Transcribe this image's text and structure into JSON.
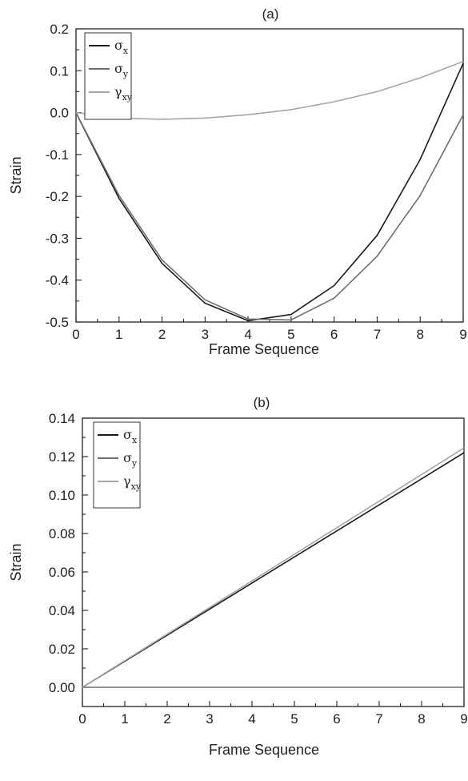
{
  "chart_data": [
    {
      "type": "line",
      "title": "(a)",
      "xlabel": "Frame Sequence",
      "ylabel": "Strain",
      "xlim": [
        0,
        9
      ],
      "ylim": [
        -0.5,
        0.2
      ],
      "xticks": [
        "0",
        "1",
        "2",
        "3",
        "4",
        "5",
        "6",
        "7",
        "8",
        "9"
      ],
      "yticks": [
        "-0.5",
        "-0.4",
        "-0.3",
        "-0.2",
        "-0.1",
        "0.0",
        "0.1",
        "0.2"
      ],
      "legend_position": "top-left",
      "series": [
        {
          "name": "σx",
          "base": "σ",
          "sub": "x",
          "color": "#1a1a1a",
          "x": [
            0,
            1,
            2,
            3,
            4,
            5,
            6,
            7,
            8,
            9
          ],
          "y": [
            0.0,
            -0.205,
            -0.36,
            -0.455,
            -0.497,
            -0.482,
            -0.413,
            -0.293,
            -0.112,
            0.118
          ]
        },
        {
          "name": "σy",
          "base": "σ",
          "sub": "y",
          "color": "#6e6e6e",
          "x": [
            0,
            1,
            2,
            3,
            4,
            5,
            6,
            7,
            8,
            9
          ],
          "y": [
            0.0,
            -0.198,
            -0.352,
            -0.447,
            -0.493,
            -0.495,
            -0.443,
            -0.343,
            -0.198,
            -0.005
          ]
        },
        {
          "name": "γxy",
          "base": "γ",
          "sub": "xy",
          "color": "#a6a6a6",
          "x": [
            0,
            1,
            2,
            3,
            4,
            5,
            6,
            7,
            8,
            9
          ],
          "y": [
            0.0,
            -0.013,
            -0.016,
            -0.013,
            -0.005,
            0.007,
            0.026,
            0.05,
            0.083,
            0.122
          ]
        }
      ]
    },
    {
      "type": "line",
      "title": "(b)",
      "xlabel": "Frame Sequence",
      "ylabel": "Strain",
      "xlim": [
        0,
        9
      ],
      "ylim": [
        -0.01,
        0.14
      ],
      "xticks": [
        "0",
        "1",
        "2",
        "3",
        "4",
        "5",
        "6",
        "7",
        "8",
        "9"
      ],
      "yticks": [
        "0.00",
        "0.02",
        "0.04",
        "0.06",
        "0.08",
        "0.10",
        "0.12",
        "0.14"
      ],
      "legend_position": "top-left",
      "series": [
        {
          "name": "σx",
          "base": "σ",
          "sub": "x",
          "color": "#1a1a1a",
          "x": [
            0,
            9
          ],
          "y": [
            0.0,
            0.122
          ]
        },
        {
          "name": "σy",
          "base": "σ",
          "sub": "y",
          "color": "#6e6e6e",
          "x": [
            0,
            9
          ],
          "y": [
            0.0,
            0.0
          ]
        },
        {
          "name": "γxy",
          "base": "γ",
          "sub": "xy",
          "color": "#a6a6a6",
          "x": [
            0,
            9
          ],
          "y": [
            0.0,
            0.1245
          ]
        }
      ]
    }
  ]
}
